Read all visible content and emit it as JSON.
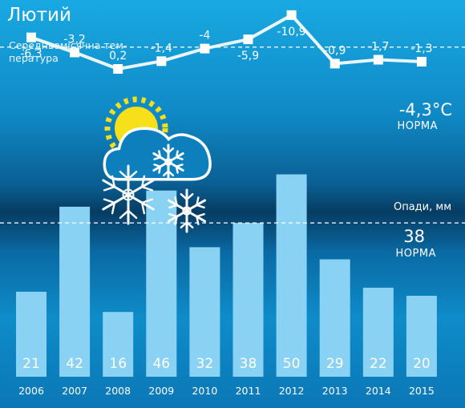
{
  "chart_data": [
    {
      "type": "line",
      "title": "Лютий",
      "subtitle": "Середньомісячна тем-пература",
      "x": [
        "2006",
        "2007",
        "2008",
        "2009",
        "2010",
        "2011",
        "2012",
        "2013",
        "2014",
        "2015"
      ],
      "values": [
        -6.3,
        -3.2,
        0.2,
        -1.4,
        null,
        -5.9,
        -10.9,
        -0.9,
        -1.7,
        -1.3
      ],
      "labels": [
        "-6,3",
        "-3,2",
        "0,2",
        "-1,4",
        "-4",
        "-5,9",
        "-10,9",
        "-0,9",
        "-1,7",
        "-1,3"
      ],
      "reference": {
        "value": -4.3,
        "label": "-4,3°C",
        "note": "НОРМА"
      }
    },
    {
      "type": "bar",
      "title": "Опади, мм",
      "categories": [
        "2006",
        "2007",
        "2008",
        "2009",
        "2010",
        "2011",
        "2012",
        "2013",
        "2014",
        "2015"
      ],
      "values": [
        21,
        42,
        16,
        46,
        32,
        38,
        50,
        29,
        22,
        20
      ],
      "reference": {
        "value": 38,
        "label": "38",
        "note": "НОРМА"
      }
    }
  ],
  "graphics": {
    "bar_color": "#8ad2f3",
    "line_color": "#ffffff",
    "marker_color": "#ffffff",
    "sun_color": "#f7df1a",
    "cloud_color": "#ffffff",
    "icon": "cloud-sun-snow-icon"
  }
}
